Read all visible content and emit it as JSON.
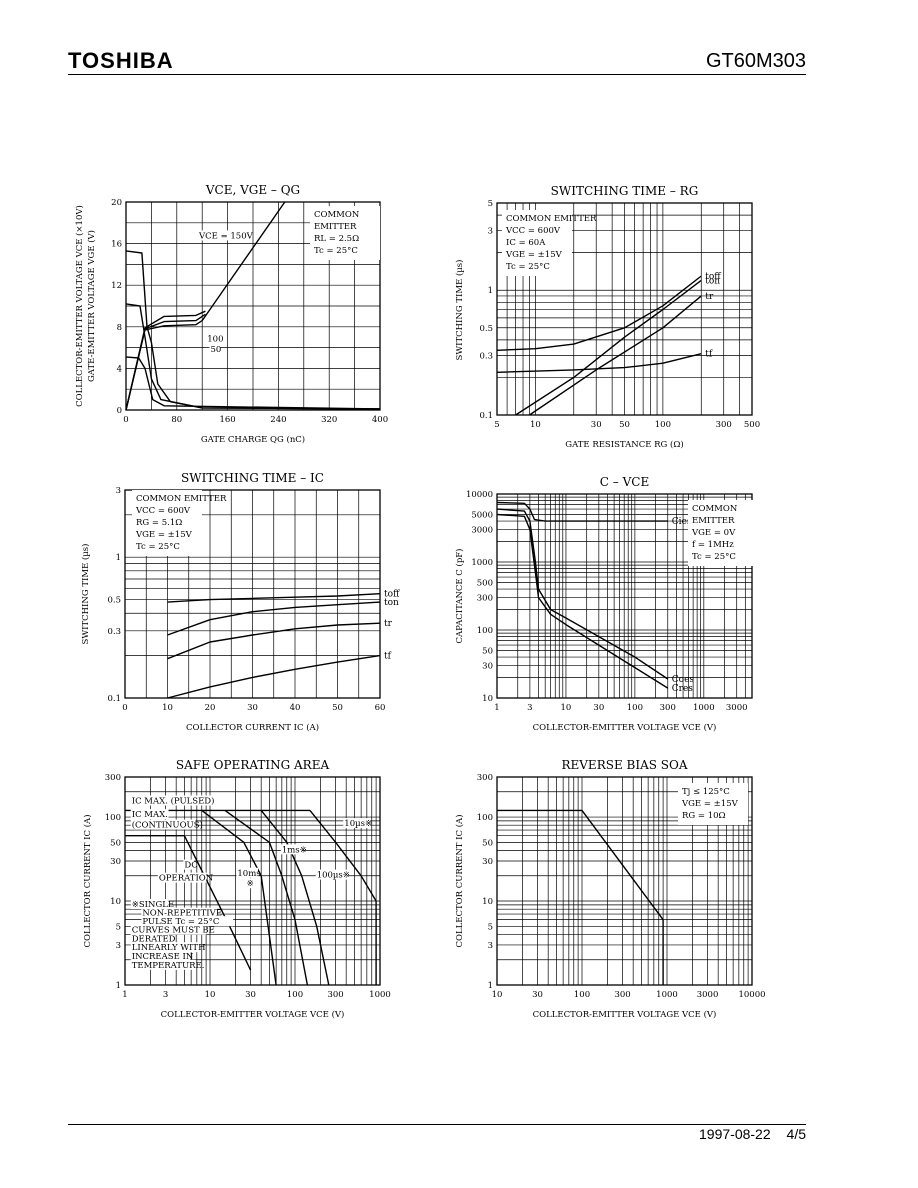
{
  "header": {
    "brand": "TOSHIBA",
    "part_number": "GT60M303"
  },
  "footer": {
    "date": "1997-08-22",
    "page": "4/5"
  },
  "chart_data": [
    {
      "type": "line",
      "title": "VCE, VGE – QG",
      "xlabel": "GATE CHARGE   QG   (nC)",
      "ylabel": [
        "COLLECTOR-EMITTER VOLTAGE   VCE   (×10V)",
        "GATE-EMITTER VOLTAGE   VGE   (V)"
      ],
      "xscale": "linear",
      "yscale": "linear",
      "xlim": [
        0,
        400
      ],
      "ylim": [
        0,
        20
      ],
      "xticks": [
        0,
        80,
        160,
        240,
        320,
        400
      ],
      "yticks": [
        0,
        4,
        8,
        12,
        16,
        20
      ],
      "legend": [
        "COMMON",
        "EMITTER",
        "RL = 2.5Ω",
        "Tc = 25°C"
      ],
      "annotations": [
        {
          "text": "VCE = 150V",
          "x": 115,
          "y": 16.5
        },
        {
          "text": "100",
          "x": 128,
          "y": 6.6
        },
        {
          "text": "50",
          "x": 133,
          "y": 5.6
        }
      ],
      "series": [
        {
          "values": [
            [
              0,
              15.3
            ],
            [
              25,
              15.1
            ],
            [
              33,
              8
            ],
            [
              40,
              6.5
            ],
            [
              50,
              2.5
            ],
            [
              70,
              0.8
            ],
            [
              120,
              0.2
            ],
            [
              400,
              0.1
            ]
          ]
        },
        {
          "values": [
            [
              0,
              10.2
            ],
            [
              22,
              10
            ],
            [
              30,
              7
            ],
            [
              40,
              3
            ],
            [
              55,
              1
            ],
            [
              120,
              0.2
            ],
            [
              400,
              0.1
            ]
          ]
        },
        {
          "values": [
            [
              0,
              5.1
            ],
            [
              20,
              5.0
            ],
            [
              30,
              4
            ],
            [
              42,
              1
            ],
            [
              60,
              0.4
            ],
            [
              400,
              0.1
            ]
          ]
        },
        {
          "values": [
            [
              0,
              0
            ],
            [
              30,
              7.7
            ],
            [
              60,
              8.1
            ],
            [
              110,
              8.2
            ],
            [
              120,
              8.6
            ],
            [
              250,
              20
            ]
          ]
        },
        {
          "values": [
            [
              0,
              0
            ],
            [
              30,
              7.8
            ],
            [
              60,
              8.5
            ],
            [
              110,
              8.6
            ],
            [
              125,
              9.2
            ]
          ]
        },
        {
          "values": [
            [
              0,
              0
            ],
            [
              30,
              7.9
            ],
            [
              60,
              9.0
            ],
            [
              110,
              9.1
            ],
            [
              125,
              9.5
            ]
          ]
        }
      ]
    },
    {
      "type": "line",
      "title": "SWITCHING TIME – RG",
      "xlabel": "GATE RESISTANCE   RG   (Ω)",
      "ylabel": "SWITCHING TIME   (µs)",
      "xscale": "log",
      "yscale": "log",
      "xlim": [
        5,
        500
      ],
      "ylim": [
        0.1,
        5
      ],
      "xticks": [
        5,
        10,
        30,
        50,
        100,
        300,
        500
      ],
      "yticks": [
        0.1,
        0.3,
        0.5,
        1,
        3,
        5
      ],
      "legend": [
        "COMMON EMITTER",
        "VCC = 600V",
        "IC = 60A",
        "VGE = ±15V",
        "Tc = 25°C"
      ],
      "series": [
        {
          "name": "toff",
          "values": [
            [
              5,
              0.33
            ],
            [
              10,
              0.34
            ],
            [
              20,
              0.37
            ],
            [
              50,
              0.5
            ],
            [
              100,
              0.75
            ],
            [
              200,
              1.3
            ]
          ]
        },
        {
          "name": "ton",
          "values": [
            [
              7,
              0.1
            ],
            [
              20,
              0.2
            ],
            [
              50,
              0.42
            ],
            [
              100,
              0.7
            ],
            [
              200,
              1.2
            ]
          ]
        },
        {
          "name": "tr",
          "values": [
            [
              9,
              0.1
            ],
            [
              30,
              0.23
            ],
            [
              100,
              0.5
            ],
            [
              200,
              0.9
            ]
          ]
        },
        {
          "name": "tf",
          "values": [
            [
              5,
              0.22
            ],
            [
              20,
              0.23
            ],
            [
              50,
              0.24
            ],
            [
              100,
              0.26
            ],
            [
              200,
              0.31
            ]
          ]
        }
      ]
    },
    {
      "type": "line",
      "title": "SWITCHING TIME – IC",
      "xlabel": "COLLECTOR CURRENT   IC   (A)",
      "ylabel": "SWITCHING TIME   (µs)",
      "xscale": "linear",
      "yscale": "log",
      "xlim": [
        0,
        60
      ],
      "ylim": [
        0.1,
        3
      ],
      "xticks": [
        0,
        10,
        20,
        30,
        40,
        50,
        60
      ],
      "yticks": [
        0.1,
        0.3,
        0.5,
        1,
        3
      ],
      "legend": [
        "COMMON EMITTER",
        "VCC = 600V",
        "RG = 5.1Ω",
        "VGE = ±15V",
        "Tc = 25°C"
      ],
      "series": [
        {
          "name": "toff",
          "values": [
            [
              10,
              0.48
            ],
            [
              20,
              0.5
            ],
            [
              30,
              0.51
            ],
            [
              40,
              0.52
            ],
            [
              50,
              0.53
            ],
            [
              60,
              0.55
            ]
          ]
        },
        {
          "name": "ton",
          "values": [
            [
              10,
              0.28
            ],
            [
              20,
              0.36
            ],
            [
              30,
              0.41
            ],
            [
              40,
              0.44
            ],
            [
              50,
              0.46
            ],
            [
              60,
              0.48
            ]
          ]
        },
        {
          "name": "tr",
          "values": [
            [
              10,
              0.19
            ],
            [
              20,
              0.25
            ],
            [
              30,
              0.28
            ],
            [
              40,
              0.31
            ],
            [
              50,
              0.33
            ],
            [
              60,
              0.34
            ]
          ]
        },
        {
          "name": "tf",
          "values": [
            [
              10,
              0.1
            ],
            [
              20,
              0.12
            ],
            [
              30,
              0.14
            ],
            [
              40,
              0.16
            ],
            [
              50,
              0.18
            ],
            [
              60,
              0.2
            ]
          ]
        }
      ]
    },
    {
      "type": "line",
      "title": "C – VCE",
      "xlabel": "COLLECTOR-EMITTER VOLTAGE   VCE   (V)",
      "ylabel": "CAPACITANCE   C   (pF)",
      "xscale": "log",
      "yscale": "log",
      "xlim": [
        1,
        5000
      ],
      "ylim": [
        10,
        10000
      ],
      "xticks": [
        1,
        3,
        10,
        30,
        100,
        300,
        1000,
        3000
      ],
      "yticks": [
        10,
        30,
        50,
        100,
        300,
        500,
        1000,
        3000,
        5000,
        10000
      ],
      "legend": [
        "COMMON",
        "EMITTER",
        "VGE = 0V",
        "f = 1MHz",
        "Tc = 25°C"
      ],
      "series": [
        {
          "name": "Cies",
          "values": [
            [
              1,
              7500
            ],
            [
              2.5,
              7300
            ],
            [
              3,
              6000
            ],
            [
              3.5,
              4200
            ],
            [
              5,
              4000
            ],
            [
              20,
              4000
            ],
            [
              100,
              4000
            ],
            [
              300,
              4000
            ]
          ]
        },
        {
          "name": "Coes",
          "values": [
            [
              1,
              6000
            ],
            [
              2.5,
              5600
            ],
            [
              3,
              4000
            ],
            [
              3.6,
              1000
            ],
            [
              4,
              400
            ],
            [
              6,
              200
            ],
            [
              10,
              150
            ],
            [
              30,
              80
            ],
            [
              100,
              40
            ],
            [
              300,
              19
            ]
          ]
        },
        {
          "name": "Cres",
          "values": [
            [
              1,
              5000
            ],
            [
              2.5,
              4700
            ],
            [
              3,
              3000
            ],
            [
              3.6,
              700
            ],
            [
              4,
              300
            ],
            [
              6,
              170
            ],
            [
              10,
              120
            ],
            [
              30,
              60
            ],
            [
              100,
              28
            ],
            [
              300,
              14
            ]
          ]
        }
      ]
    },
    {
      "type": "line",
      "title": "SAFE OPERATING AREA",
      "xlabel": "COLLECTOR-EMITTER VOLTAGE   VCE   (V)",
      "ylabel": "COLLECTOR CURRENT   IC   (A)",
      "xscale": "log",
      "yscale": "log",
      "xlim": [
        1,
        1000
      ],
      "ylim": [
        1,
        300
      ],
      "xticks": [
        1,
        3,
        10,
        30,
        100,
        300,
        1000
      ],
      "yticks": [
        1,
        3,
        5,
        10,
        30,
        50,
        100,
        300
      ],
      "annotations": [
        {
          "text": "IC MAX. (PULSED)",
          "x": 1.2,
          "y": 145
        },
        {
          "text": "IC MAX.",
          "x": 1.2,
          "y": 100
        },
        {
          "text": "(CONTINUOUS)",
          "x": 1.2,
          "y": 75
        },
        {
          "text": "10µs※",
          "x": 380,
          "y": 78
        },
        {
          "text": "1ms※",
          "x": 70,
          "y": 38
        },
        {
          "text": "10ms",
          "x": 21,
          "y": 20
        },
        {
          "text": "※",
          "x": 27,
          "y": 15
        },
        {
          "text": "100µs※",
          "x": 180,
          "y": 19
        },
        {
          "text": "DC",
          "x": 5,
          "y": 25
        },
        {
          "text": "OPERATION",
          "x": 2.5,
          "y": 17.5
        },
        {
          "text": "※SINGLE",
          "x": 1.2,
          "y": 8.5
        },
        {
          "text": "NON-REPETITIVE",
          "x": 1.6,
          "y": 6.7
        },
        {
          "text": "PULSE   Tc = 25°C",
          "x": 1.6,
          "y": 5.3
        },
        {
          "text": "CURVES MUST BE",
          "x": 1.2,
          "y": 4.2
        },
        {
          "text": "DERATED",
          "x": 1.2,
          "y": 3.3
        },
        {
          "text": "LINEARLY WITH",
          "x": 1.2,
          "y": 2.6
        },
        {
          "text": "INCREASE IN",
          "x": 1.2,
          "y": 2.05
        },
        {
          "text": "TEMPERATURE.",
          "x": 1.2,
          "y": 1.6
        }
      ],
      "series": [
        {
          "values": [
            [
              1,
              120
            ],
            [
              150,
              120
            ]
          ]
        },
        {
          "values": [
            [
              1,
              60
            ],
            [
              5,
              60
            ],
            [
              17,
              5
            ],
            [
              30,
              1.5
            ]
          ]
        },
        {
          "values": [
            [
              8,
              120
            ],
            [
              25,
              50
            ],
            [
              40,
              20
            ],
            [
              60,
              1
            ]
          ]
        },
        {
          "values": [
            [
              15,
              120
            ],
            [
              50,
              50
            ],
            [
              70,
              20
            ],
            [
              100,
              6
            ],
            [
              140,
              1
            ]
          ]
        },
        {
          "values": [
            [
              40,
              120
            ],
            [
              80,
              50
            ],
            [
              120,
              20
            ],
            [
              180,
              5
            ],
            [
              250,
              1
            ]
          ]
        },
        {
          "values": [
            [
              150,
              120
            ],
            [
              300,
              50
            ],
            [
              600,
              20
            ],
            [
              900,
              10
            ],
            [
              900,
              1
            ]
          ]
        }
      ]
    },
    {
      "type": "line",
      "title": "REVERSE BIAS SOA",
      "xlabel": "COLLECTOR-EMITTER VOLTAGE   VCE   (V)",
      "ylabel": "COLLECTOR CURRENT   IC   (A)",
      "xscale": "log",
      "yscale": "log",
      "xlim": [
        10,
        10000
      ],
      "ylim": [
        1,
        300
      ],
      "xticks": [
        10,
        30,
        100,
        300,
        1000,
        3000,
        10000
      ],
      "yticks": [
        1,
        3,
        5,
        10,
        30,
        50,
        100,
        300
      ],
      "legend": [
        "Tj ≤ 125°C",
        "VGE = ±15V",
        "RG = 10Ω"
      ],
      "series": [
        {
          "values": [
            [
              10,
              120
            ],
            [
              100,
              120
            ],
            [
              900,
              6
            ],
            [
              900,
              1
            ]
          ]
        }
      ]
    }
  ]
}
